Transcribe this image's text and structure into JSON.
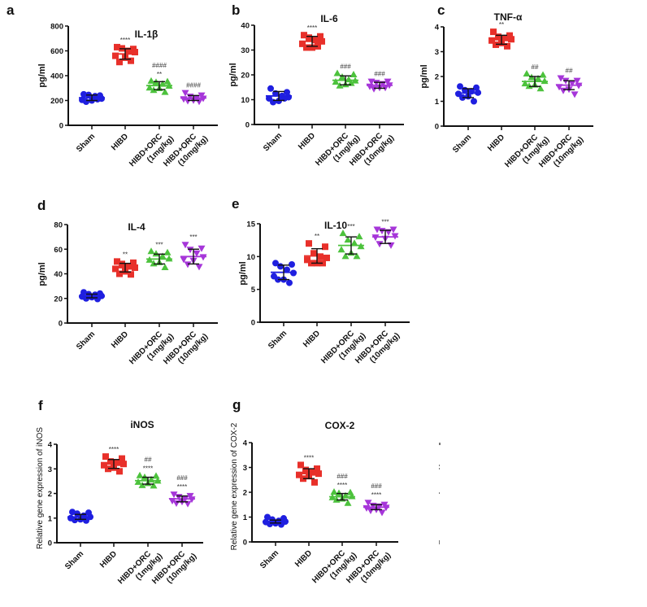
{
  "figure": {
    "panel_count": 7,
    "colors": {
      "Sham": "#1f1fe0",
      "HIBD": "#e8302a",
      "HIBD+ORC (1mg/kg)": "#4cc23c",
      "HIBD+ORC (10mg/kg)": "#a636d9",
      "axis": "#111111"
    },
    "markers": {
      "Sham": "circle",
      "HIBD": "square",
      "HIBD+ORC (1mg/kg)": "triangle-up",
      "HIBD+ORC (10mg/kg)": "triangle-down"
    }
  },
  "chart_data": [
    {
      "panel": "a",
      "type": "scatter",
      "title": "IL-1β",
      "xlabel": "",
      "ylabel": "pg/ml",
      "ylim": [
        0,
        800
      ],
      "yticks": [
        0,
        200,
        400,
        600,
        800
      ],
      "grid": false,
      "categories": [
        [
          "Sham"
        ],
        [
          "HIBD"
        ],
        [
          "HIBD+ORC",
          "(1mg/kg)"
        ],
        [
          "HIBD+ORC",
          "(10mg/kg)"
        ]
      ],
      "series": [
        {
          "name": "Sham",
          "mean": 222,
          "sd": 22,
          "points": [
            250,
            240,
            245,
            235,
            215,
            205,
            200,
            190,
            210
          ],
          "sig": []
        },
        {
          "name": "HIBD",
          "mean": 575,
          "sd": 42,
          "points": [
            630,
            615,
            620,
            600,
            590,
            560,
            545,
            510,
            520
          ],
          "sig": [
            "****"
          ]
        },
        {
          "name": "HIBD+ORC (1mg/kg)",
          "mean": 320,
          "sd": 32,
          "points": [
            355,
            350,
            345,
            330,
            315,
            300,
            295,
            280,
            265
          ],
          "sig": [
            "####",
            "**"
          ]
        },
        {
          "name": "HIBD+ORC (10mg/kg)",
          "mean": 220,
          "sd": 20,
          "points": [
            265,
            245,
            235,
            225,
            220,
            215,
            205,
            200,
            195
          ],
          "sig": [
            "####"
          ]
        }
      ]
    },
    {
      "panel": "b",
      "type": "scatter",
      "title": "IL-6",
      "xlabel": "",
      "ylabel": "pg/ml",
      "ylim": [
        0,
        40
      ],
      "yticks": [
        0,
        10,
        20,
        30,
        40
      ],
      "grid": false,
      "categories": [
        [
          "Sham"
        ],
        [
          "HIBD"
        ],
        [
          "HIBD+ORC",
          "(1mg/kg)"
        ],
        [
          "HIBD+ORC",
          "(10mg/kg)"
        ]
      ],
      "series": [
        {
          "name": "Sham",
          "mean": 11.5,
          "sd": 1.8,
          "points": [
            14.5,
            13,
            12.5,
            11.5,
            11,
            10.5,
            9.5,
            9,
            10.5
          ],
          "sig": []
        },
        {
          "name": "HIBD",
          "mean": 33.5,
          "sd": 2.0,
          "points": [
            36,
            35.5,
            35,
            34,
            33.5,
            32.5,
            31,
            31,
            31.5
          ],
          "sig": [
            "****"
          ]
        },
        {
          "name": "HIBD+ORC (1mg/kg)",
          "mean": 17.8,
          "sd": 1.8,
          "points": [
            20.5,
            20,
            19,
            18,
            17.5,
            17,
            16,
            15.5,
            16.5
          ],
          "sig": [
            "###"
          ]
        },
        {
          "name": "HIBD+ORC (10mg/kg)",
          "mean": 15.8,
          "sd": 1.2,
          "points": [
            17.5,
            17.5,
            17,
            16.5,
            16,
            15.5,
            15,
            14.5,
            15
          ],
          "sig": [
            "###"
          ]
        }
      ]
    },
    {
      "panel": "c",
      "type": "scatter",
      "title": "TNF-α",
      "xlabel": "",
      "ylabel": "pg/ml",
      "ylim": [
        0,
        4
      ],
      "yticks": [
        0,
        1,
        2,
        3,
        4
      ],
      "grid": false,
      "categories": [
        [
          "Sham"
        ],
        [
          "HIBD"
        ],
        [
          "HIBD+ORC",
          "(1mg/kg)"
        ],
        [
          "HIBD+ORC",
          "(10mg/kg)"
        ]
      ],
      "series": [
        {
          "name": "Sham",
          "mean": 1.33,
          "sd": 0.18,
          "points": [
            1.6,
            1.55,
            1.45,
            1.4,
            1.35,
            1.3,
            1.2,
            1.15,
            1.0
          ],
          "sig": []
        },
        {
          "name": "HIBD",
          "mean": 3.48,
          "sd": 0.18,
          "points": [
            3.8,
            3.65,
            3.6,
            3.55,
            3.5,
            3.45,
            3.35,
            3.28,
            3.22
          ],
          "sig": [
            "**"
          ]
        },
        {
          "name": "HIBD+ORC (1mg/kg)",
          "mean": 1.8,
          "sd": 0.2,
          "points": [
            2.1,
            2.05,
            1.95,
            1.9,
            1.8,
            1.7,
            1.65,
            1.6,
            1.5
          ],
          "sig": [
            "##"
          ]
        },
        {
          "name": "HIBD+ORC (10mg/kg)",
          "mean": 1.65,
          "sd": 0.18,
          "points": [
            1.95,
            1.85,
            1.85,
            1.75,
            1.65,
            1.6,
            1.5,
            1.45,
            1.3
          ],
          "sig": [
            "##"
          ]
        }
      ]
    },
    {
      "panel": "d",
      "type": "scatter",
      "title": "IL-4",
      "xlabel": "",
      "ylabel": "pg/ml",
      "ylim": [
        0,
        80
      ],
      "yticks": [
        0,
        20,
        40,
        60,
        80
      ],
      "grid": false,
      "categories": [
        [
          "Sham"
        ],
        [
          "HIBD"
        ],
        [
          "HIBD+ORC",
          "(1mg/kg)"
        ],
        [
          "HIBD+ORC",
          "(10mg/kg)"
        ]
      ],
      "series": [
        {
          "name": "Sham",
          "mean": 22,
          "sd": 1.5,
          "points": [
            25,
            24,
            23.5,
            23,
            22,
            21.5,
            21,
            20,
            19.5
          ],
          "sig": []
        },
        {
          "name": "HIBD",
          "mean": 45,
          "sd": 3.5,
          "points": [
            50,
            49,
            48,
            46,
            45,
            44,
            42,
            40,
            39.5
          ],
          "sig": [
            "**"
          ]
        },
        {
          "name": "HIBD+ORC (1mg/kg)",
          "mean": 52,
          "sd": 4,
          "points": [
            58,
            57,
            56,
            54,
            52,
            51,
            49,
            48,
            45
          ],
          "sig": [
            "***"
          ]
        },
        {
          "name": "HIBD+ORC (10mg/kg)",
          "mean": 54,
          "sd": 6,
          "points": [
            64,
            61,
            60,
            57,
            54,
            52,
            51,
            48,
            46
          ],
          "sig": [
            "***"
          ]
        }
      ]
    },
    {
      "panel": "e",
      "type": "scatter",
      "title": "IL-10",
      "xlabel": "",
      "ylabel": "pg/ml",
      "ylim": [
        0,
        15
      ],
      "yticks": [
        0,
        5,
        10,
        15
      ],
      "grid": false,
      "categories": [
        [
          "Sham"
        ],
        [
          "HIBD"
        ],
        [
          "HIBD+ORC",
          "(1mg/kg)"
        ],
        [
          "HIBD+ORC",
          "(10mg/kg)"
        ]
      ],
      "series": [
        {
          "name": "Sham",
          "mean": 7.6,
          "sd": 1.1,
          "points": [
            9,
            8.8,
            8.5,
            8,
            7.5,
            7,
            6.5,
            6.5,
            6
          ],
          "sig": []
        },
        {
          "name": "HIBD",
          "mean": 10.1,
          "sd": 1.1,
          "points": [
            12,
            11.5,
            10.5,
            10,
            9.8,
            9.5,
            9,
            9,
            9
          ],
          "sig": [
            "**"
          ]
        },
        {
          "name": "HIBD+ORC (1mg/kg)",
          "mean": 11.7,
          "sd": 1.3,
          "points": [
            13.5,
            13,
            12.5,
            12,
            11.5,
            11,
            10.5,
            10,
            10
          ],
          "sig": [
            "***"
          ]
        },
        {
          "name": "HIBD+ORC (10mg/kg)",
          "mean": 13,
          "sd": 1.0,
          "points": [
            14.2,
            14.2,
            14,
            13.8,
            13.2,
            13,
            12.8,
            12,
            11.8
          ],
          "sig": [
            "***"
          ]
        }
      ]
    },
    {
      "panel": "f",
      "type": "scatter",
      "title": "iNOS",
      "xlabel": "",
      "ylabel": "Relative gene expression of iNOS",
      "ylim": [
        0,
        4
      ],
      "yticks": [
        0,
        1,
        2,
        3,
        4
      ],
      "grid": false,
      "categories": [
        [
          "Sham"
        ],
        [
          "HIBD"
        ],
        [
          "HIBD+ORC",
          "(1mg/kg)"
        ],
        [
          "HIBD+ORC",
          "(10mg/kg)"
        ]
      ],
      "series": [
        {
          "name": "Sham",
          "mean": 1.05,
          "sd": 0.1,
          "points": [
            1.25,
            1.22,
            1.18,
            1.1,
            1.05,
            1.0,
            0.95,
            0.92,
            0.9
          ],
          "sig": []
        },
        {
          "name": "HIBD",
          "mean": 3.2,
          "sd": 0.18,
          "points": [
            3.5,
            3.42,
            3.3,
            3.25,
            3.2,
            3.15,
            3.05,
            3.0,
            2.9
          ],
          "sig": [
            "****"
          ]
        },
        {
          "name": "HIBD+ORC (1mg/kg)",
          "mean": 2.52,
          "sd": 0.14,
          "points": [
            2.72,
            2.7,
            2.65,
            2.55,
            2.5,
            2.45,
            2.4,
            2.32,
            2.3
          ],
          "sig": [
            "##",
            "****"
          ]
        },
        {
          "name": "HIBD+ORC (10mg/kg)",
          "mean": 1.78,
          "sd": 0.12,
          "points": [
            1.98,
            1.92,
            1.88,
            1.82,
            1.78,
            1.72,
            1.68,
            1.62,
            1.6
          ],
          "sig": [
            "###",
            "****"
          ]
        }
      ]
    },
    {
      "panel": "g",
      "type": "scatter",
      "title": "COX-2",
      "xlabel": "",
      "ylabel": "Relative gene expression of COX-2",
      "ylim": [
        0,
        4
      ],
      "yticks": [
        0,
        1,
        2,
        3,
        4
      ],
      "grid": false,
      "categories": [
        [
          "Sham"
        ],
        [
          "HIBD"
        ],
        [
          "HIBD+ORC",
          "(1mg/kg)"
        ],
        [
          "HIBD+ORC",
          "(10mg/kg)"
        ]
      ],
      "series": [
        {
          "name": "Sham",
          "mean": 0.82,
          "sd": 0.06,
          "points": [
            1.0,
            0.95,
            0.9,
            0.85,
            0.82,
            0.8,
            0.75,
            0.72,
            0.7
          ],
          "sig": []
        },
        {
          "name": "HIBD",
          "mean": 2.75,
          "sd": 0.2,
          "points": [
            3.1,
            2.95,
            2.9,
            2.8,
            2.75,
            2.7,
            2.65,
            2.55,
            2.4
          ],
          "sig": [
            "****"
          ]
        },
        {
          "name": "HIBD+ORC (1mg/kg)",
          "mean": 1.82,
          "sd": 0.13,
          "points": [
            2.0,
            1.98,
            1.95,
            1.85,
            1.82,
            1.78,
            1.72,
            1.68,
            1.55
          ],
          "sig": [
            "###",
            "****"
          ]
        },
        {
          "name": "HIBD+ORC (10mg/kg)",
          "mean": 1.4,
          "sd": 0.1,
          "points": [
            1.6,
            1.52,
            1.48,
            1.45,
            1.4,
            1.38,
            1.32,
            1.28,
            1.2
          ],
          "sig": [
            "###",
            "****"
          ]
        }
      ]
    }
  ]
}
